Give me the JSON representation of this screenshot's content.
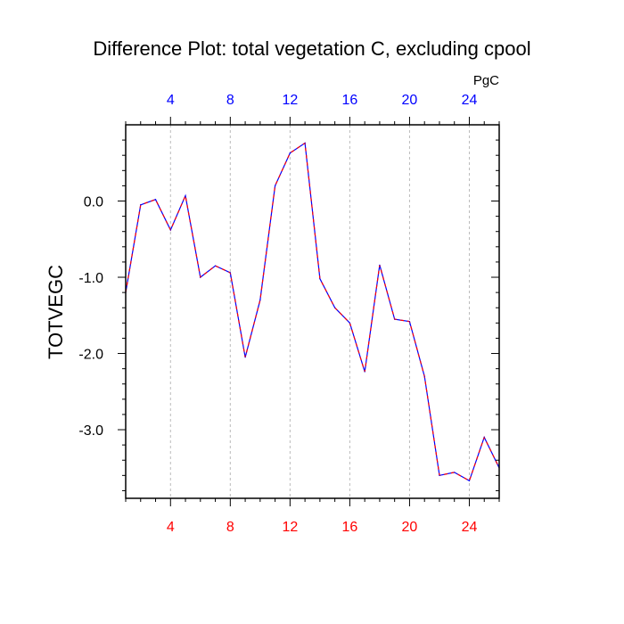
{
  "chart_data": {
    "type": "line",
    "title": "Difference Plot: total vegetation C, excluding cpool",
    "ylabel": "TOTVEGC",
    "units_label": "PgC",
    "xlim": [
      1,
      26
    ],
    "ylim": [
      -3.9,
      1.0
    ],
    "x_ticks": [
      4,
      8,
      12,
      16,
      20,
      24
    ],
    "x_tick_labels": [
      "4",
      "8",
      "12",
      "16",
      "20",
      "24"
    ],
    "y_ticks": [
      0.0,
      -1.0,
      -2.0,
      -3.0
    ],
    "y_tick_labels": [
      "0.0",
      "-1.0",
      "-2.0",
      "-3.0"
    ],
    "grid": "vertical-dashed",
    "colors": {
      "top_axis_labels": "#0000ff",
      "bottom_axis_labels": "#ff0000",
      "series_base": "#0000ff",
      "series_dash": "#ff0000",
      "grid": "#bbbbbb",
      "axis": "#000000"
    },
    "series": [
      {
        "x": [
          1,
          2,
          3,
          4,
          5,
          6,
          7,
          8,
          9,
          10,
          11,
          12,
          13,
          14,
          15,
          16,
          17,
          18,
          19,
          20,
          21,
          22,
          23,
          24,
          25,
          26
        ],
        "values": [
          -1.2,
          -0.05,
          0.02,
          -0.38,
          0.07,
          -1.0,
          -0.85,
          -0.94,
          -2.05,
          -1.3,
          0.2,
          0.63,
          0.76,
          -1.02,
          -1.4,
          -1.6,
          -2.24,
          -0.84,
          -1.55,
          -1.58,
          -2.3,
          -3.6,
          -3.56,
          -3.67,
          -3.1,
          -3.5
        ]
      }
    ]
  }
}
